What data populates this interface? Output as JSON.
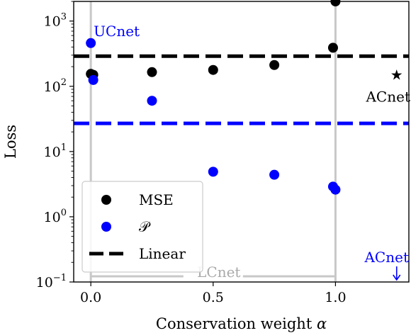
{
  "chart_data": {
    "type": "scatter",
    "title": "",
    "xlabel": "Conservation weight α",
    "ylabel": "Loss",
    "xlim": [
      -0.07,
      1.3
    ],
    "ylim": [
      0.1,
      2000
    ],
    "yscale": "log",
    "grid": false,
    "legend_position": "lower-left",
    "x_ticks": [
      {
        "value": 0.0,
        "label": "0.0"
      },
      {
        "value": 0.5,
        "label": "0.5"
      },
      {
        "value": 1.0,
        "label": "1.0"
      }
    ],
    "y_ticks": [
      {
        "value": 0.1,
        "base": "10",
        "exp": "−1"
      },
      {
        "value": 1,
        "base": "10",
        "exp": "0"
      },
      {
        "value": 10,
        "base": "10",
        "exp": "1"
      },
      {
        "value": 100,
        "base": "10",
        "exp": "2"
      },
      {
        "value": 1000,
        "base": "10",
        "exp": "3"
      }
    ],
    "series": [
      {
        "name": "MSE",
        "color": "#000000",
        "points": [
          {
            "x": 0.0,
            "y": 155
          },
          {
            "x": 0.01,
            "y": 150
          },
          {
            "x": 0.25,
            "y": 165
          },
          {
            "x": 0.5,
            "y": 178
          },
          {
            "x": 0.75,
            "y": 212
          },
          {
            "x": 0.99,
            "y": 390
          },
          {
            "x": 1.0,
            "y": 2000
          }
        ]
      },
      {
        "name": "𝒫",
        "color": "#0000ff",
        "points": [
          {
            "x": 0.0,
            "y": 460
          },
          {
            "x": 0.01,
            "y": 125
          },
          {
            "x": 0.25,
            "y": 60
          },
          {
            "x": 0.5,
            "y": 4.9
          },
          {
            "x": 0.75,
            "y": 4.4
          },
          {
            "x": 0.99,
            "y": 2.9
          },
          {
            "x": 1.0,
            "y": 2.6
          }
        ]
      }
    ],
    "reference_lines": [
      {
        "name": "Linear",
        "value": 290,
        "color": "#000000",
        "legend": true
      },
      {
        "name": "",
        "value": 27,
        "color": "#0000ff",
        "legend": false
      }
    ],
    "vertical_guides": [
      0.0,
      1.0
    ],
    "annotations": [
      {
        "text": "UCnet",
        "x": 0.0,
        "y": 460,
        "color": "#0000ff"
      },
      {
        "text": "ACnet",
        "x": 1.25,
        "y": 150,
        "color": "#000000",
        "marker": "★"
      },
      {
        "text": "LCnet",
        "x": 0.5,
        "y": 0.1,
        "color": "#aaaaaa"
      },
      {
        "text": "ACnet",
        "x": 1.25,
        "y": 0.1,
        "color": "#0000ff",
        "marker": "↓"
      }
    ]
  }
}
